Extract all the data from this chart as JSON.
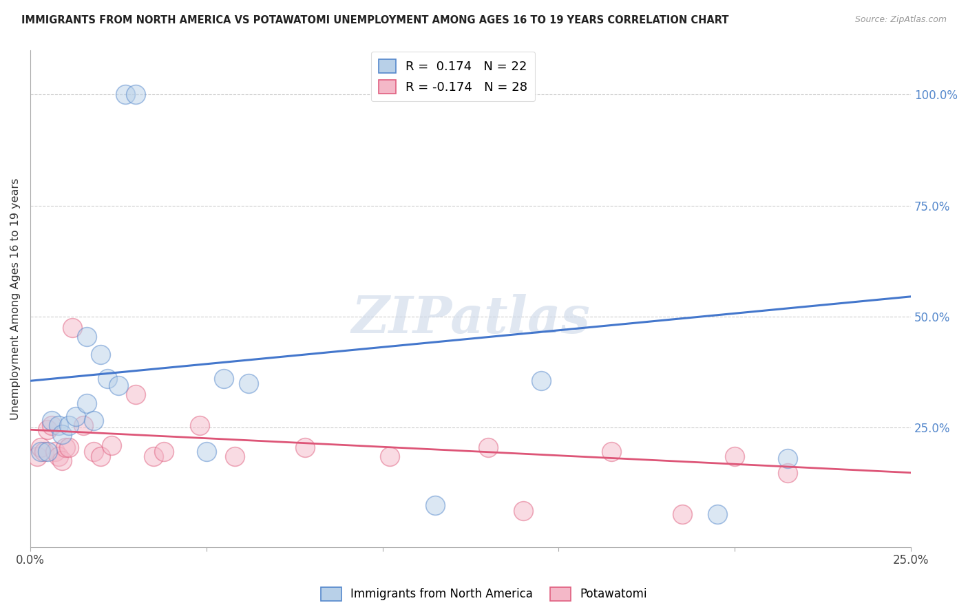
{
  "title": "IMMIGRANTS FROM NORTH AMERICA VS POTAWATOMI UNEMPLOYMENT AMONG AGES 16 TO 19 YEARS CORRELATION CHART",
  "source": "Source: ZipAtlas.com",
  "ylabel": "Unemployment Among Ages 16 to 19 years",
  "xlim": [
    0.0,
    0.25
  ],
  "ylim": [
    -0.02,
    1.1
  ],
  "xticks": [
    0.0,
    0.05,
    0.1,
    0.15,
    0.2,
    0.25
  ],
  "xtick_labels": [
    "0.0%",
    "",
    "",
    "",
    "",
    "25.0%"
  ],
  "yticks_right": [
    0.25,
    0.5,
    0.75,
    1.0
  ],
  "ytick_labels_right": [
    "25.0%",
    "50.0%",
    "75.0%",
    "100.0%"
  ],
  "legend1_label": "Immigrants from North America",
  "legend2_label": "Potawatomi",
  "R_blue": "0.174",
  "N_blue": "22",
  "R_pink": "-0.174",
  "N_pink": "28",
  "blue_fill": "#b8d0e8",
  "blue_edge": "#5588cc",
  "pink_fill": "#f4b8c8",
  "pink_edge": "#e06080",
  "blue_line_color": "#4477cc",
  "pink_line_color": "#dd5577",
  "watermark_color": "#ccd8e8",
  "blue_line_y0": 0.355,
  "blue_line_y1": 0.545,
  "pink_line_y0": 0.245,
  "pink_line_y1": 0.148,
  "blue_x": [
    0.027,
    0.03,
    0.016,
    0.02,
    0.003,
    0.005,
    0.006,
    0.008,
    0.009,
    0.011,
    0.013,
    0.016,
    0.018,
    0.022,
    0.025,
    0.05,
    0.055,
    0.062,
    0.115,
    0.145,
    0.195,
    0.215
  ],
  "blue_y": [
    1.0,
    1.0,
    0.455,
    0.415,
    0.195,
    0.195,
    0.265,
    0.255,
    0.235,
    0.255,
    0.275,
    0.305,
    0.265,
    0.36,
    0.345,
    0.195,
    0.36,
    0.35,
    0.075,
    0.355,
    0.055,
    0.18
  ],
  "pink_x": [
    0.002,
    0.003,
    0.004,
    0.005,
    0.006,
    0.007,
    0.008,
    0.009,
    0.01,
    0.011,
    0.012,
    0.015,
    0.018,
    0.02,
    0.023,
    0.03,
    0.035,
    0.038,
    0.048,
    0.058,
    0.078,
    0.102,
    0.13,
    0.14,
    0.165,
    0.185,
    0.2,
    0.215
  ],
  "pink_y": [
    0.185,
    0.205,
    0.195,
    0.245,
    0.255,
    0.195,
    0.185,
    0.175,
    0.205,
    0.205,
    0.475,
    0.255,
    0.195,
    0.185,
    0.21,
    0.325,
    0.185,
    0.195,
    0.255,
    0.185,
    0.205,
    0.185,
    0.205,
    0.062,
    0.195,
    0.055,
    0.185,
    0.148
  ],
  "scatter_size": 400,
  "scatter_alpha": 0.5,
  "scatter_lw": 1.2
}
